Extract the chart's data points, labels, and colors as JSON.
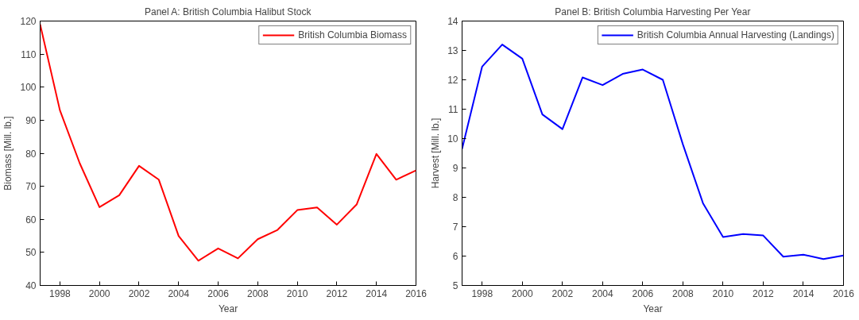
{
  "chart_data": [
    {
      "type": "line",
      "title": "Panel A: British Columbia Halibut Stock",
      "xlabel": "Year",
      "ylabel": "Biomass [Mill. lb.]",
      "x": [
        1997,
        1998,
        1999,
        2000,
        2001,
        2002,
        2003,
        2004,
        2005,
        2006,
        2007,
        2008,
        2009,
        2010,
        2011,
        2012,
        2013,
        2014,
        2015,
        2016
      ],
      "series": [
        {
          "name": "British Columbia Biomass",
          "color": "#ff0000",
          "values": [
            119,
            93,
            77,
            63.7,
            67.3,
            76.2,
            72,
            55,
            47.5,
            51.2,
            48.2,
            54,
            56.8,
            62.8,
            63.6,
            58.4,
            64.5,
            79.8,
            72,
            74.8
          ]
        }
      ],
      "xlim": [
        1997,
        2016
      ],
      "xticks": [
        1998,
        2000,
        2002,
        2004,
        2006,
        2008,
        2010,
        2012,
        2014,
        2016
      ],
      "ylim": [
        40,
        120
      ],
      "yticks": [
        40,
        50,
        60,
        70,
        80,
        90,
        100,
        110,
        120
      ],
      "grid": false,
      "legend": "top right",
      "marker": "none",
      "line_style": "solid"
    },
    {
      "type": "line",
      "title": "Panel B: British Columbia Harvesting Per Year",
      "xlabel": "Year",
      "ylabel": "Harvest [Mill. lb.]",
      "x": [
        1997,
        1998,
        1999,
        2000,
        2001,
        2002,
        2003,
        2004,
        2005,
        2006,
        2007,
        2008,
        2009,
        2010,
        2011,
        2012,
        2013,
        2014,
        2015,
        2016
      ],
      "series": [
        {
          "name": "British Columbia Annual Harvesting (Landings)",
          "color": "#0000ff",
          "values": [
            9.65,
            12.45,
            13.2,
            12.72,
            10.82,
            10.32,
            12.08,
            11.82,
            12.2,
            12.35,
            12.0,
            9.8,
            7.8,
            6.65,
            6.75,
            6.7,
            5.98,
            6.05,
            5.9,
            6.02
          ]
        }
      ],
      "xlim": [
        1997,
        2016
      ],
      "xticks": [
        1998,
        2000,
        2002,
        2004,
        2006,
        2008,
        2010,
        2012,
        2014,
        2016
      ],
      "ylim": [
        5,
        14
      ],
      "yticks": [
        5,
        6,
        7,
        8,
        9,
        10,
        11,
        12,
        13,
        14
      ],
      "grid": false,
      "legend": "top right",
      "marker": "none",
      "line_style": "solid"
    }
  ]
}
